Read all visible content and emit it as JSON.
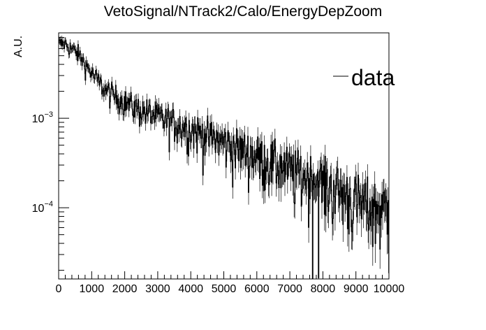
{
  "chart_data": {
    "type": "histogram",
    "title": "VetoSignal/NTrack2/Calo/EnergyDepZoom",
    "xlabel": "",
    "ylabel": "A.U.",
    "xlim": [
      0,
      10000
    ],
    "ylim": [
      1.6e-05,
      0.009
    ],
    "y_scale": "log",
    "grid": false,
    "legend": {
      "position": "top-right",
      "entries": [
        "data"
      ]
    },
    "x_ticks": [
      0,
      1000,
      2000,
      3000,
      4000,
      5000,
      6000,
      7000,
      8000,
      9000,
      10000
    ],
    "x_tick_labels": [
      "0",
      "1000",
      "2000",
      "3000",
      "4000",
      "5000",
      "6000",
      "7000",
      "8000",
      "9000",
      "10000"
    ],
    "y_ticks": [
      {
        "value": 0.001,
        "base": "10",
        "exp": "−3"
      },
      {
        "value": 0.0001,
        "base": "10",
        "exp": "−4"
      }
    ],
    "series": [
      {
        "name": "data",
        "bin_width": 400,
        "x": [
          0,
          400,
          800,
          1200,
          1600,
          2000,
          2400,
          2800,
          3200,
          3600,
          4000,
          4400,
          4800,
          5200,
          5600,
          6000,
          6400,
          6800,
          7200,
          7600,
          8000,
          8400,
          8800,
          9200,
          9600
        ],
        "values": [
          0.0068,
          0.0052,
          0.0032,
          0.0021,
          0.0017,
          0.0014,
          0.0012,
          0.00105,
          0.00092,
          0.00082,
          0.00072,
          0.00063,
          0.00055,
          0.00047,
          0.00042,
          0.00036,
          0.00032,
          0.00027,
          0.00024,
          0.00021,
          0.00018,
          0.00015,
          0.000125,
          0.00011,
          0.0001
        ]
      }
    ]
  }
}
